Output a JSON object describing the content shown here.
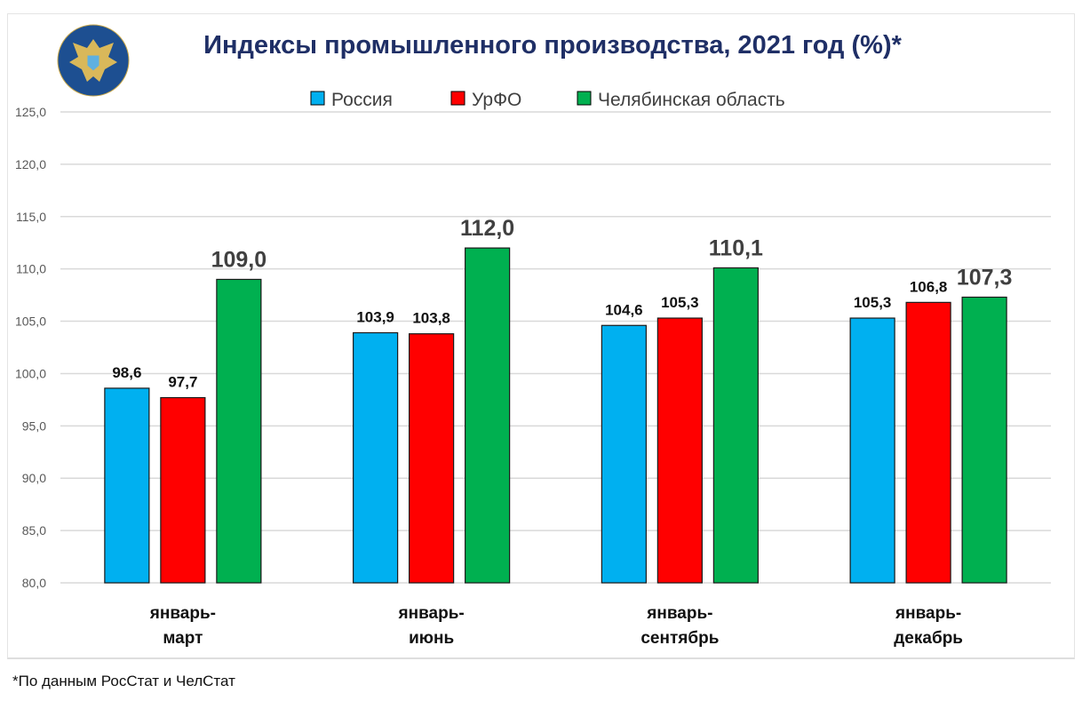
{
  "chart_data": {
    "type": "bar",
    "title": "Индексы промышленного производства, 2021 год (%)*",
    "categories": [
      [
        "январь-",
        "март"
      ],
      [
        "январь-",
        "июнь"
      ],
      [
        "январь-",
        "сентябрь"
      ],
      [
        "январь-",
        "декабрь"
      ]
    ],
    "series": [
      {
        "name": "Россия",
        "color": "#00B0F0",
        "values": [
          98.6,
          103.9,
          104.6,
          105.3
        ],
        "labels": [
          "98,6",
          "103,9",
          "104,6",
          "105,3"
        ]
      },
      {
        "name": "УрФО",
        "color": "#FF0000",
        "values": [
          97.7,
          103.8,
          105.3,
          106.8
        ],
        "labels": [
          "97,7",
          "103,8",
          "105,3",
          "106,8"
        ]
      },
      {
        "name": "Челябинская область",
        "color": "#00B050",
        "values": [
          109.0,
          112.0,
          110.1,
          107.3
        ],
        "labels": [
          "109,0",
          "112,0",
          "110,1",
          "107,3"
        ]
      }
    ],
    "yticks": [
      "80,0",
      "85,0",
      "90,0",
      "95,0",
      "100,0",
      "105,0",
      "110,0",
      "115,0",
      "120,0",
      "125,0"
    ],
    "ylim": [
      80,
      125
    ],
    "ystep": 5,
    "grid": true,
    "legend_position": "top",
    "xlabel": "",
    "ylabel": ""
  },
  "footnote": "*По данным РосСтат и ЧелСтат",
  "logo": "emblem"
}
